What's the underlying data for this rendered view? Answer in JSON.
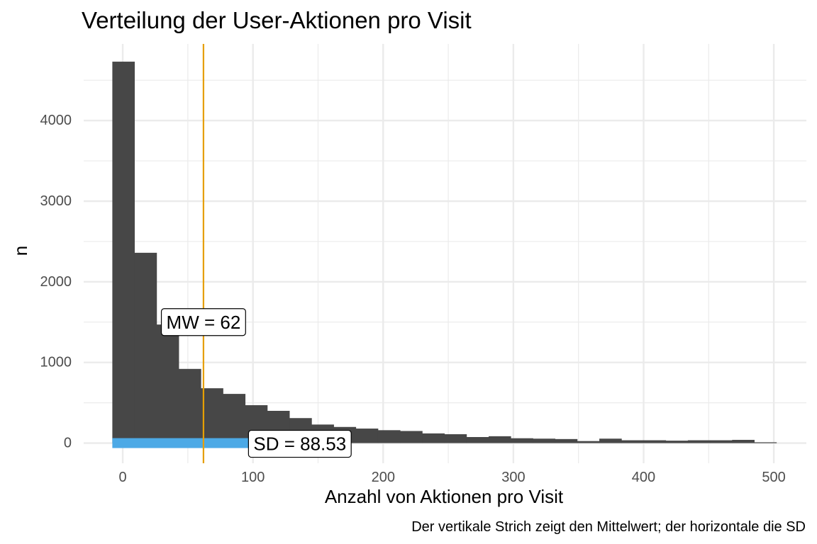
{
  "chart_data": {
    "type": "bar",
    "title": "Verteilung der User-Aktionen pro Visit",
    "xlabel": "Anzahl von Aktionen pro Visit",
    "ylabel": "n",
    "caption": "Der vertikale Strich zeigt den Mittelwert; der horizontale die SD",
    "xlim": [
      -30,
      525
    ],
    "ylim": [
      -250,
      4950
    ],
    "x_ticks": [
      0,
      100,
      200,
      300,
      400,
      500
    ],
    "x_tick_labels": [
      "0",
      "100",
      "200",
      "300",
      "400",
      "500"
    ],
    "y_ticks": [
      0,
      1000,
      2000,
      3000,
      4000
    ],
    "y_tick_labels": [
      "0",
      "1000",
      "2000",
      "3000",
      "4000"
    ],
    "grid": true,
    "bin_width": 17,
    "bins_start": [
      -8,
      9,
      26,
      43,
      60,
      77,
      94,
      111,
      128,
      145,
      162,
      179,
      196,
      213,
      230,
      247,
      264,
      281,
      298,
      315,
      332,
      349,
      366,
      383,
      400,
      417,
      434,
      451,
      468,
      485
    ],
    "counts": [
      4730,
      2360,
      1470,
      920,
      680,
      610,
      470,
      400,
      310,
      230,
      200,
      180,
      160,
      150,
      120,
      110,
      75,
      85,
      60,
      55,
      50,
      25,
      55,
      35,
      35,
      30,
      35,
      35,
      40,
      10
    ],
    "mean": 62,
    "sd": 88.53,
    "mean_label": "MW = 62",
    "sd_label": "SD = 88.53",
    "sd_segment": [
      -8,
      114
    ],
    "colors": {
      "bars": "#474747",
      "mean_line": "#E69F00",
      "sd_bar": "#4CA9E6",
      "grid": "#ebebeb"
    }
  }
}
